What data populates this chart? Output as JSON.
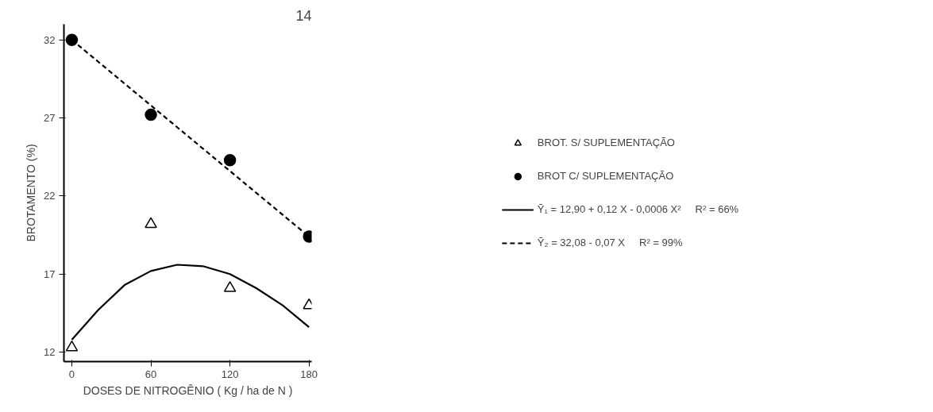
{
  "chart_data": {
    "type": "scatter",
    "xlabel": "DOSES DE NITROGÊNIO ( Kg / ha de N )",
    "ylabel": "BROTAMENTO (%)",
    "x": [
      0,
      60,
      120,
      180
    ],
    "xlim": [
      -6,
      182
    ],
    "ylim": [
      11.4,
      33
    ],
    "xticks": [
      0,
      60,
      120,
      180
    ],
    "yticks": [
      12,
      17,
      22,
      27,
      32
    ],
    "grid": false,
    "legend": "right",
    "annotations": [
      "14"
    ],
    "series": [
      {
        "name": "BROT. S/ SUPLEMENTAÇÃO",
        "marker": "triangle",
        "color": "#000000",
        "values": [
          12.3,
          20.2,
          16.1,
          15.0
        ]
      },
      {
        "name": "BROT C/ SUPLEMENTAÇÃO",
        "marker": "circle",
        "color": "#000000",
        "values": [
          32.0,
          27.2,
          24.3,
          19.4
        ]
      },
      {
        "name": "Ȳ₁ = 12,90 + 0,12 X - 0,0006 X²     R² = 66%",
        "type": "line",
        "line_style": "solid",
        "color": "#000000",
        "x": [
          0,
          20,
          40,
          60,
          80,
          100,
          120,
          140,
          160,
          180
        ],
        "values": [
          12.8,
          14.7,
          16.3,
          17.2,
          17.6,
          17.5,
          17.0,
          16.1,
          15.0,
          13.6
        ]
      },
      {
        "name": "Ȳ₂ = 32,08 - 0,07 X     R² = 99%",
        "type": "line",
        "line_style": "dashed",
        "color": "#000000",
        "x": [
          0,
          180
        ],
        "values": [
          32.0,
          19.4
        ]
      }
    ]
  }
}
